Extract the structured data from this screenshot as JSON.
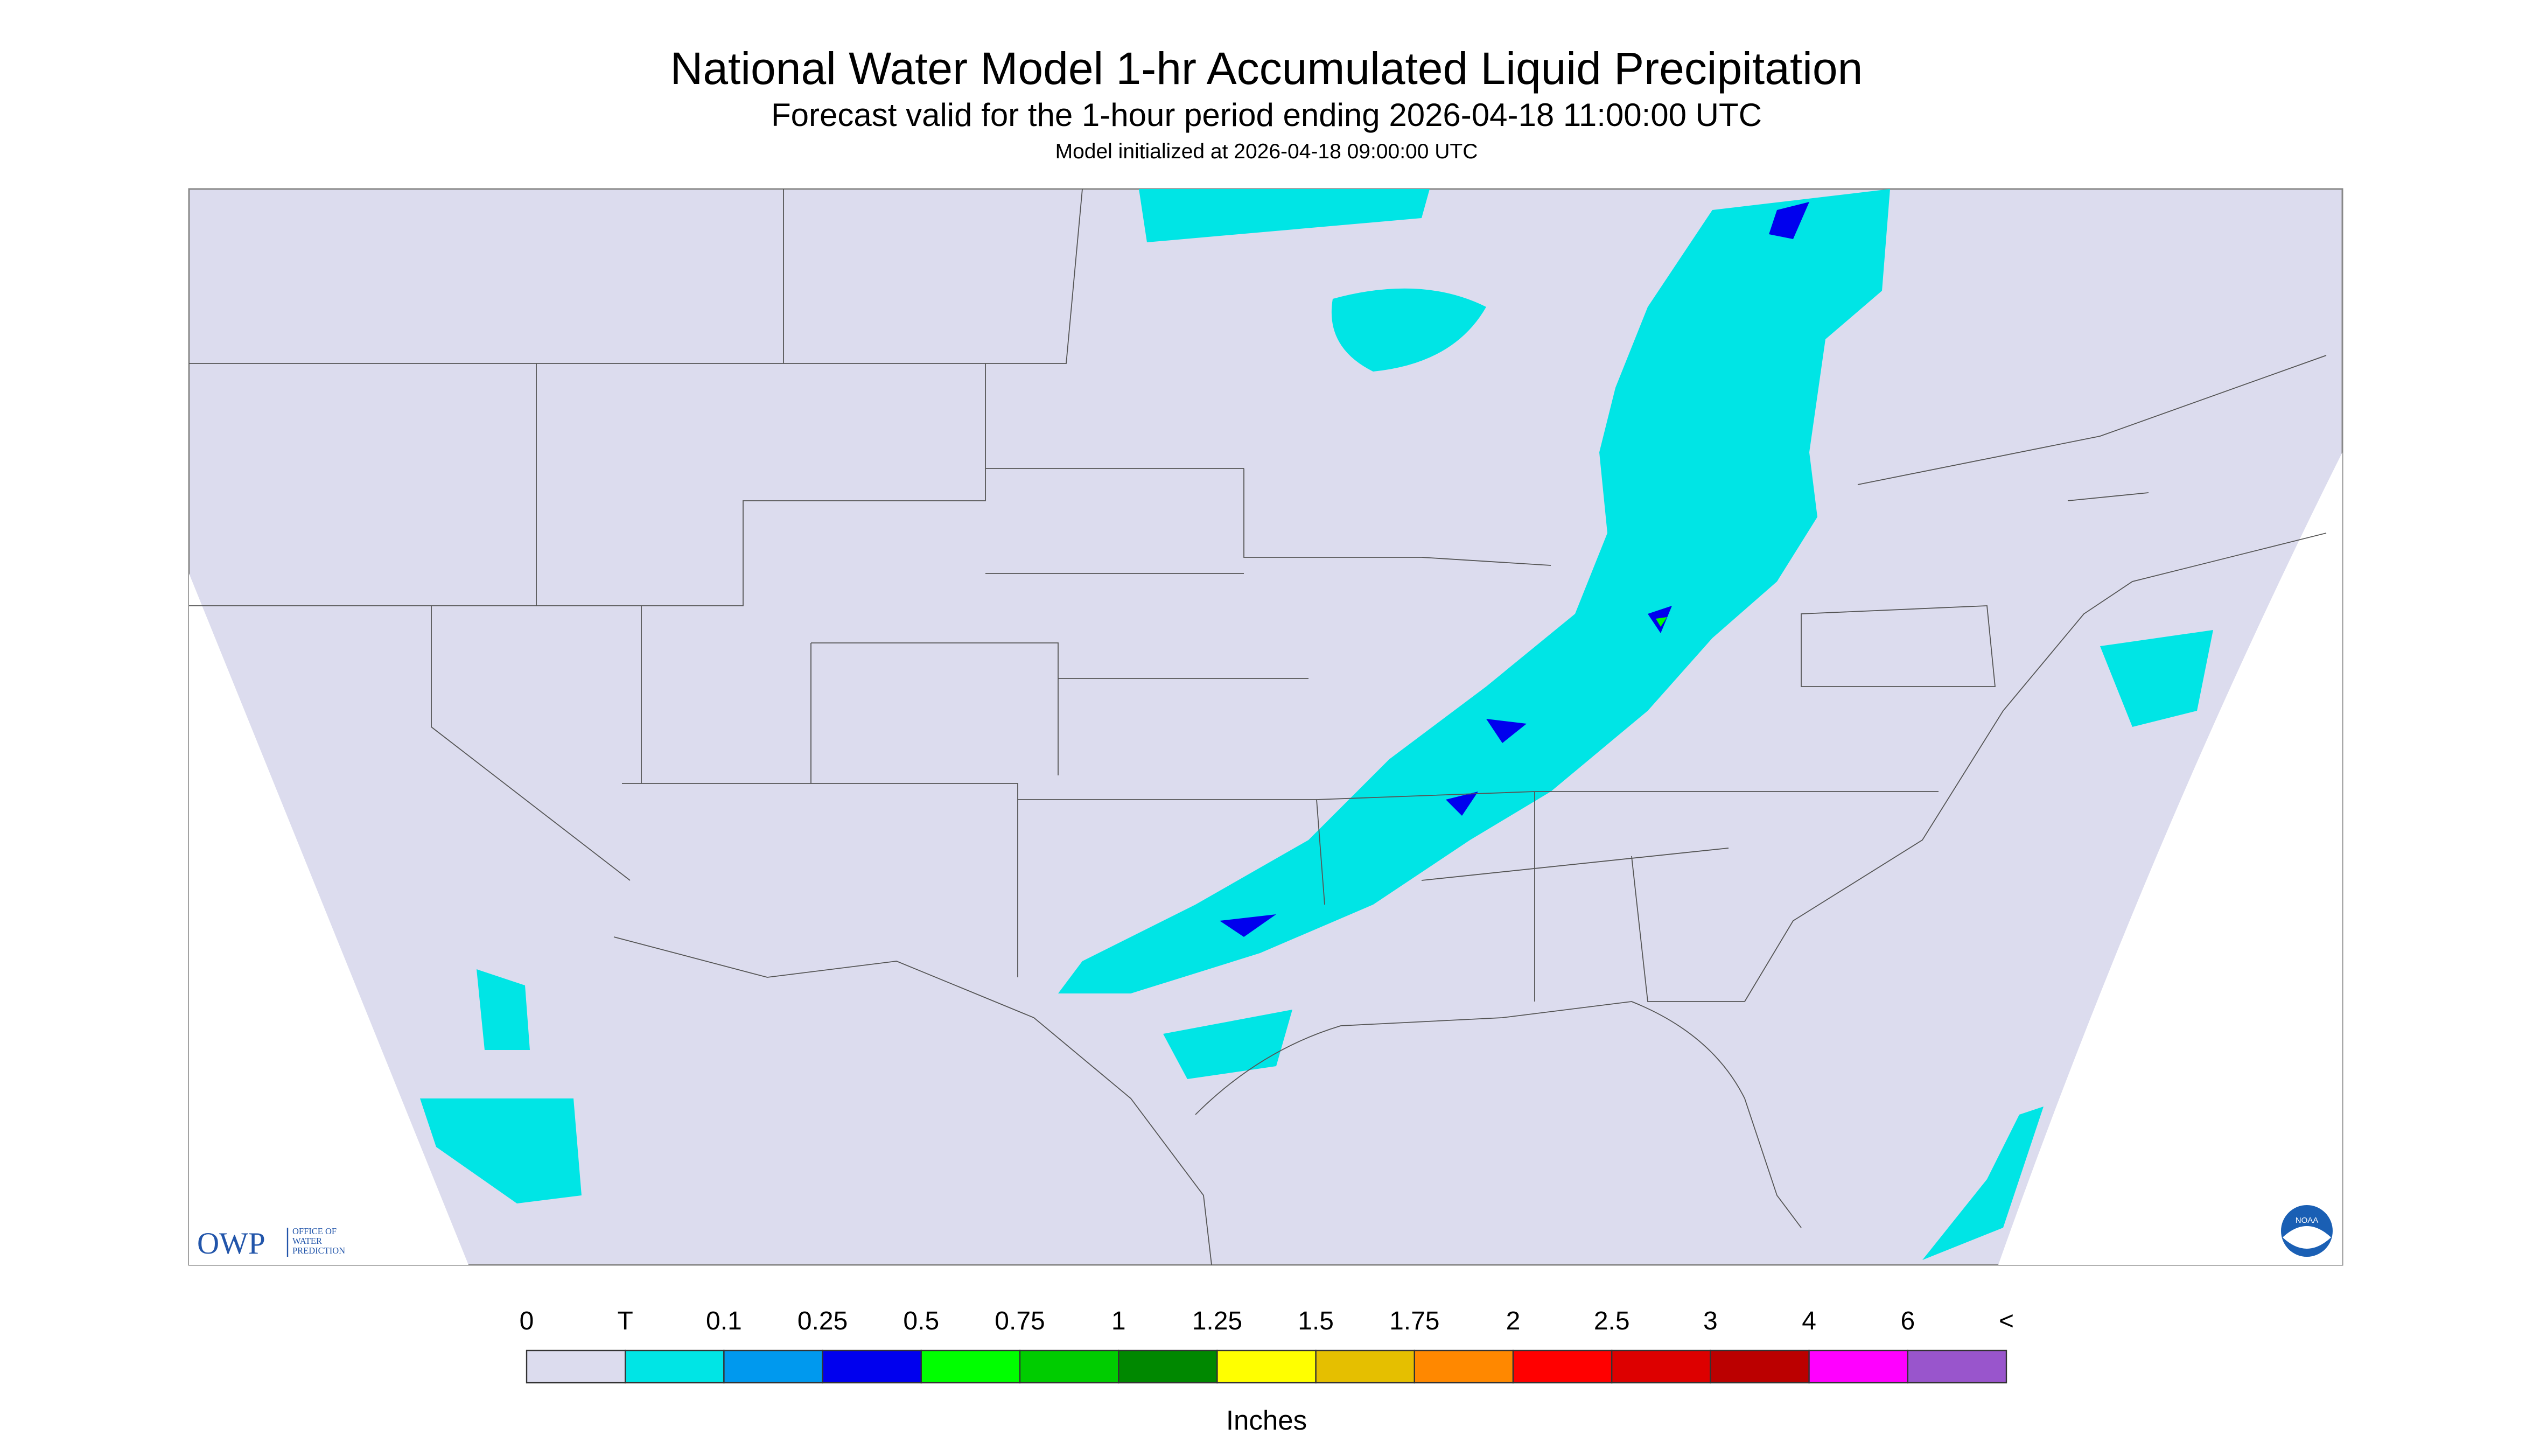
{
  "header": {
    "title": "National Water Model 1-hr Accumulated Liquid Precipitation",
    "subtitle": "Forecast valid for the 1-hour period ending 2026-04-18 11:00:00 UTC",
    "init": "Model initialized at 2026-04-18 09:00:00 UTC"
  },
  "logos": {
    "owp": "OWP",
    "owp_lines": [
      "OFFICE OF",
      "WATER",
      "PREDICTION"
    ],
    "noaa": "NOAA"
  },
  "legend": {
    "unit": "Inches",
    "labels": [
      "0",
      "T",
      "0.1",
      "0.25",
      "0.5",
      "0.75",
      "1",
      "1.25",
      "1.5",
      "1.75",
      "2",
      "2.5",
      "3",
      "4",
      "6",
      "<"
    ],
    "colors": [
      "#dcdcee",
      "#00e5e5",
      "#0099ee",
      "#0000ee",
      "#00ff00",
      "#00cc00",
      "#008800",
      "#ffff00",
      "#e5bf00",
      "#ff8800",
      "#ff0000",
      "#dd0000",
      "#bb0000",
      "#ff00ff",
      "#9955cc"
    ]
  }
}
